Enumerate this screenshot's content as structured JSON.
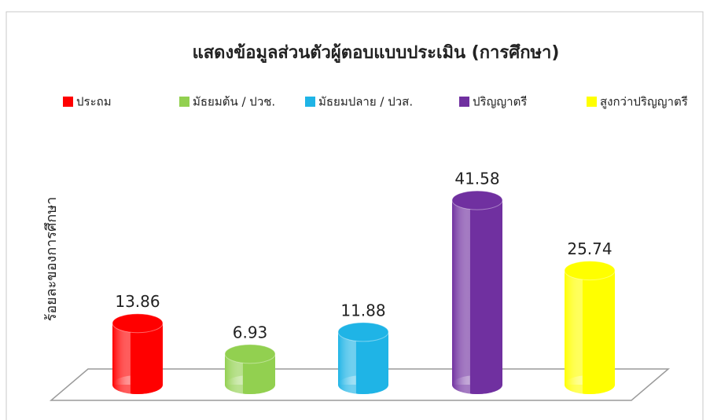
{
  "chart_data": {
    "type": "cylinder",
    "title": "แสดงข้อมูลส่วนตัวผู้ตอบแบบประเมิน (การศึกษา)",
    "y_label": "ร้อยละของการศึกษา",
    "categories": [
      "ประถม",
      "มัธยมต้น / ปวช.",
      "มัธยมปลาย / ปวส.",
      "ปริญญาตรี",
      "สูงกว่าปริญญาตรี"
    ],
    "values": [
      13.86,
      6.93,
      11.88,
      41.58,
      25.74
    ],
    "colors": [
      "#ff0000",
      "#92d050",
      "#1fb4e6",
      "#7030a0",
      "#ffff00"
    ],
    "legend": "top"
  }
}
